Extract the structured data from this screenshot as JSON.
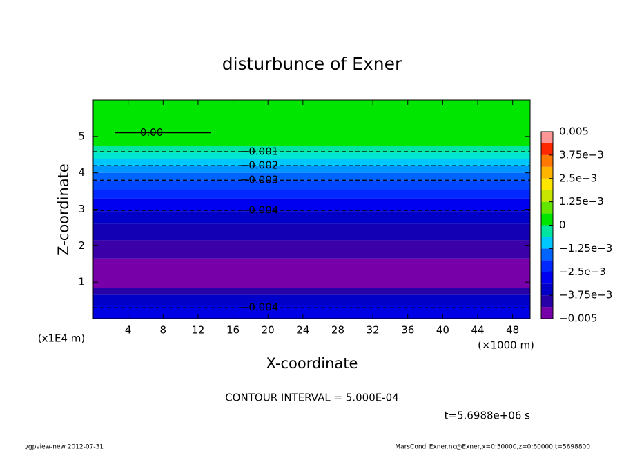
{
  "chart_data": {
    "type": "contour",
    "title": "disturbunce of Exner",
    "x_label": "X-coordinate",
    "y_label": "Z-coordinate",
    "x_unit": "(×1000 m)",
    "y_unit": "(x1E4 m)",
    "xlim": [
      0,
      50
    ],
    "xticks": [
      4,
      8,
      12,
      16,
      20,
      24,
      28,
      32,
      36,
      40,
      44,
      48
    ],
    "ylim": [
      0,
      6
    ],
    "yticks": [
      1,
      2,
      3,
      4,
      5
    ],
    "bands": [
      {
        "z": [
          4.74,
          6
        ],
        "color": "#00e600"
      },
      {
        "z": [
          4.55,
          4.74
        ],
        "color": "#00e6a0"
      },
      {
        "z": [
          4.38,
          4.55
        ],
        "color": "#00e6d2"
      },
      {
        "z": [
          4.2,
          4.38
        ],
        "color": "#00c8ff"
      },
      {
        "z": [
          4.0,
          4.2
        ],
        "color": "#0096ff"
      },
      {
        "z": [
          3.8,
          4.0
        ],
        "color": "#0064ff"
      },
      {
        "z": [
          3.55,
          3.8
        ],
        "color": "#0046ff"
      },
      {
        "z": [
          3.3,
          3.55
        ],
        "color": "#0028ff"
      },
      {
        "z": [
          2.95,
          3.3
        ],
        "color": "#0000f0"
      },
      {
        "z": [
          2.6,
          2.95
        ],
        "color": "#0000c8"
      },
      {
        "z": [
          2.15,
          2.6
        ],
        "color": "#1400b4"
      },
      {
        "z": [
          1.65,
          2.15
        ],
        "color": "#3c00a8"
      },
      {
        "z": [
          0.85,
          1.65
        ],
        "color": "#7800a8"
      },
      {
        "z": [
          0.65,
          0.85
        ],
        "color": "#2800a8"
      },
      {
        "z": [
          0.35,
          0.65
        ],
        "color": "#0000c8"
      },
      {
        "z": [
          0,
          0.35
        ],
        "color": "#0000e6"
      }
    ],
    "contours": [
      {
        "label": "0.00",
        "z": 5.1,
        "x": [
          2.5,
          13.5
        ],
        "dashed": false
      },
      {
        "label": "−0.001",
        "z": 4.58,
        "x": [
          0,
          50
        ],
        "dashed": true
      },
      {
        "label": "−0.002",
        "z": 4.2,
        "x": [
          0,
          50
        ],
        "dashed": true
      },
      {
        "label": "−0.003",
        "z": 3.8,
        "x": [
          0,
          50
        ],
        "dashed": true
      },
      {
        "label": "−0.004",
        "z": 2.97,
        "x": [
          0,
          50
        ],
        "dashed": true
      },
      {
        "label": "−0.004",
        "z": 0.3,
        "x": [
          0,
          50
        ],
        "dashed": true
      }
    ],
    "colorbar": {
      "levels": [
        -0.005,
        -0.004375,
        -0.00375,
        -0.003125,
        -0.0025,
        -0.001875,
        -0.00125,
        -0.000625,
        0,
        0.000625,
        0.00125,
        0.001875,
        0.0025,
        0.003125,
        0.00375,
        0.004375,
        0.005
      ],
      "colors": [
        "#7800a8",
        "#2800a8",
        "#0000c8",
        "#0000f0",
        "#0028ff",
        "#0064ff",
        "#00c8ff",
        "#00e6a0",
        "#00e600",
        "#64e600",
        "#c8e600",
        "#ffe600",
        "#ffb400",
        "#ff7800",
        "#ff2800",
        "#ff9696"
      ],
      "ticks": [
        {
          "value": -0.005,
          "label": "−0.005"
        },
        {
          "value": -0.00375,
          "label": "−3.75e−3"
        },
        {
          "value": -0.0025,
          "label": "−2.5e−3"
        },
        {
          "value": -0.00125,
          "label": "−1.25e−3"
        },
        0,
        {
          "value": 0.00125,
          "label": "1.25e−3"
        },
        {
          "value": 0.0025,
          "label": "2.5e−3"
        },
        {
          "value": 0.00375,
          "label": "3.75e−3"
        },
        0.005
      ]
    },
    "contour_interval": "CONTOUR INTERVAL = 5.000E-04",
    "time_label": "t=5.6988e+06 s",
    "footer_left": "./gpview-new  2012-07-31",
    "footer_right": "MarsCond_Exner.nc@Exner,x=0:50000,z=0:60000,t=5698800"
  }
}
